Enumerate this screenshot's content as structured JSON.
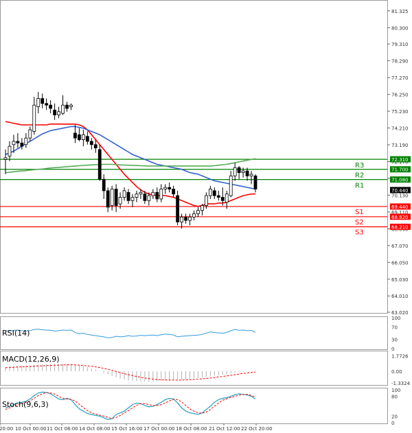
{
  "chart_data": {
    "type": "candlestick",
    "title": "",
    "main_panel": {
      "price_axis": {
        "ticks": [
          "81.325",
          "80.300",
          "79.310",
          "78.290",
          "77.270",
          "76.250",
          "75.230",
          "74.210",
          "73.190",
          "72.170",
          "71.150",
          "70.130",
          "69.110",
          "68.090",
          "67.070",
          "66.050",
          "65.030",
          "64.010",
          "63.020"
        ],
        "ylim": [
          63.02,
          81.9
        ]
      },
      "x_ticks": [
        "9 Oct 20:00",
        "10 Oct 00:00",
        "11 Oct 08:00",
        "14 Oct 08:00",
        "15 Oct 16:00",
        "17 Oct 00:00",
        "18 Oct 08:00",
        "21 Oct 12:00",
        "22 Oct 20:00"
      ],
      "candles": [
        {
          "o": 72.3,
          "h": 72.9,
          "l": 71.4,
          "c": 72.4
        },
        {
          "o": 72.5,
          "h": 73.4,
          "l": 72.2,
          "c": 73.1
        },
        {
          "o": 73.2,
          "h": 73.8,
          "l": 72.7,
          "c": 73.4
        },
        {
          "o": 73.4,
          "h": 73.9,
          "l": 73.0,
          "c": 73.3
        },
        {
          "o": 73.3,
          "h": 73.6,
          "l": 72.9,
          "c": 73.1
        },
        {
          "o": 73.2,
          "h": 73.9,
          "l": 73.0,
          "c": 73.6
        },
        {
          "o": 73.6,
          "h": 74.3,
          "l": 73.4,
          "c": 74.1
        },
        {
          "o": 74.0,
          "h": 76.1,
          "l": 73.8,
          "c": 75.6
        },
        {
          "o": 75.5,
          "h": 76.4,
          "l": 75.1,
          "c": 76.0
        },
        {
          "o": 76.0,
          "h": 76.3,
          "l": 75.4,
          "c": 75.7
        },
        {
          "o": 75.7,
          "h": 76.0,
          "l": 75.3,
          "c": 75.6
        },
        {
          "o": 75.6,
          "h": 75.9,
          "l": 75.1,
          "c": 75.4
        },
        {
          "o": 75.3,
          "h": 75.7,
          "l": 74.7,
          "c": 75.0
        },
        {
          "o": 75.0,
          "h": 75.5,
          "l": 74.8,
          "c": 75.2
        },
        {
          "o": 75.1,
          "h": 76.2,
          "l": 75.0,
          "c": 75.6
        },
        {
          "o": 75.6,
          "h": 75.8,
          "l": 75.2,
          "c": 75.4
        },
        {
          "o": 75.5,
          "h": 75.7,
          "l": 75.3,
          "c": 75.6
        },
        {
          "o": 73.9,
          "h": 74.4,
          "l": 73.3,
          "c": 73.6
        },
        {
          "o": 73.8,
          "h": 74.2,
          "l": 73.4,
          "c": 73.5
        },
        {
          "o": 73.5,
          "h": 74.1,
          "l": 73.1,
          "c": 73.8
        },
        {
          "o": 73.7,
          "h": 74.0,
          "l": 73.2,
          "c": 73.4
        },
        {
          "o": 73.4,
          "h": 73.6,
          "l": 72.9,
          "c": 73.2
        },
        {
          "o": 73.2,
          "h": 73.5,
          "l": 72.7,
          "c": 73.0
        },
        {
          "o": 72.9,
          "h": 73.2,
          "l": 71.0,
          "c": 71.1
        },
        {
          "o": 71.1,
          "h": 71.4,
          "l": 69.9,
          "c": 70.4
        },
        {
          "o": 70.4,
          "h": 70.6,
          "l": 69.1,
          "c": 69.4
        },
        {
          "o": 69.5,
          "h": 70.7,
          "l": 69.2,
          "c": 70.5
        },
        {
          "o": 70.5,
          "h": 70.8,
          "l": 69.1,
          "c": 69.5
        },
        {
          "o": 69.6,
          "h": 70.3,
          "l": 69.3,
          "c": 70.0
        },
        {
          "o": 70.0,
          "h": 70.6,
          "l": 69.8,
          "c": 70.4
        },
        {
          "o": 70.3,
          "h": 70.5,
          "l": 69.6,
          "c": 69.8
        },
        {
          "o": 69.8,
          "h": 70.2,
          "l": 69.4,
          "c": 70.0
        },
        {
          "o": 70.0,
          "h": 70.4,
          "l": 69.7,
          "c": 70.2
        },
        {
          "o": 70.2,
          "h": 70.5,
          "l": 69.9,
          "c": 70.3
        },
        {
          "o": 70.2,
          "h": 70.4,
          "l": 69.6,
          "c": 69.8
        },
        {
          "o": 69.8,
          "h": 70.3,
          "l": 69.5,
          "c": 70.1
        },
        {
          "o": 70.1,
          "h": 70.5,
          "l": 69.9,
          "c": 70.3
        },
        {
          "o": 70.3,
          "h": 70.6,
          "l": 69.7,
          "c": 69.9
        },
        {
          "o": 69.9,
          "h": 70.8,
          "l": 69.7,
          "c": 70.5
        },
        {
          "o": 70.5,
          "h": 70.8,
          "l": 70.2,
          "c": 70.6
        },
        {
          "o": 70.6,
          "h": 70.9,
          "l": 70.3,
          "c": 70.5
        },
        {
          "o": 70.5,
          "h": 70.7,
          "l": 70.0,
          "c": 70.2
        },
        {
          "o": 70.1,
          "h": 70.4,
          "l": 68.3,
          "c": 68.5
        },
        {
          "o": 68.5,
          "h": 69.0,
          "l": 68.1,
          "c": 68.8
        },
        {
          "o": 68.8,
          "h": 69.0,
          "l": 68.4,
          "c": 68.6
        },
        {
          "o": 68.6,
          "h": 69.0,
          "l": 68.3,
          "c": 68.8
        },
        {
          "o": 68.8,
          "h": 69.2,
          "l": 68.6,
          "c": 69.0
        },
        {
          "o": 69.0,
          "h": 69.4,
          "l": 68.8,
          "c": 69.2
        },
        {
          "o": 69.2,
          "h": 69.6,
          "l": 68.9,
          "c": 69.5
        },
        {
          "o": 69.5,
          "h": 70.3,
          "l": 69.3,
          "c": 70.1
        },
        {
          "o": 70.1,
          "h": 70.7,
          "l": 69.9,
          "c": 70.5
        },
        {
          "o": 70.4,
          "h": 70.6,
          "l": 69.9,
          "c": 70.1
        },
        {
          "o": 70.1,
          "h": 70.4,
          "l": 69.8,
          "c": 70.0
        },
        {
          "o": 70.0,
          "h": 70.6,
          "l": 69.5,
          "c": 69.8
        },
        {
          "o": 69.7,
          "h": 70.4,
          "l": 69.3,
          "c": 70.2
        },
        {
          "o": 70.1,
          "h": 71.6,
          "l": 70.0,
          "c": 71.3
        },
        {
          "o": 71.3,
          "h": 72.1,
          "l": 71.0,
          "c": 71.8
        },
        {
          "o": 71.8,
          "h": 71.9,
          "l": 71.1,
          "c": 71.5
        },
        {
          "o": 71.5,
          "h": 71.8,
          "l": 71.2,
          "c": 71.6
        },
        {
          "o": 71.6,
          "h": 71.8,
          "l": 71.0,
          "c": 71.3
        },
        {
          "o": 71.3,
          "h": 71.6,
          "l": 70.8,
          "c": 71.4
        },
        {
          "o": 71.3,
          "h": 71.4,
          "l": 70.3,
          "c": 70.5
        }
      ],
      "levels": [
        {
          "name": "R3",
          "value": 72.31,
          "label": "72.310",
          "color": "#008000"
        },
        {
          "name": "R2",
          "value": 71.7,
          "label": "71.700",
          "color": "#008000"
        },
        {
          "name": "R1",
          "value": 71.08,
          "label": "71.080",
          "color": "#008000"
        },
        {
          "name": "",
          "value": 70.44,
          "label": "70.440",
          "color": "#000000"
        },
        {
          "name": "S1",
          "value": 69.44,
          "label": "69.440",
          "color": "#ff0000"
        },
        {
          "name": "S2",
          "value": 68.82,
          "label": "68.820",
          "color": "#ff0000"
        },
        {
          "name": "S3",
          "value": 68.21,
          "label": "68.210",
          "color": "#ff0000"
        }
      ],
      "moving_averages": [
        {
          "color": "#ff0000",
          "values": [
            74.6,
            74.55,
            74.5,
            74.45,
            74.4,
            74.4,
            74.4,
            74.4,
            74.4,
            74.4,
            74.4,
            74.45,
            74.45,
            74.45,
            74.45,
            74.45,
            74.45,
            74.45,
            74.4,
            74.3,
            74.1,
            73.8,
            73.5,
            73.2,
            72.9,
            72.6,
            72.3,
            72.0,
            71.7,
            71.4,
            71.15,
            70.9,
            70.65,
            70.45,
            70.3,
            70.2,
            70.15,
            70.1,
            70.1,
            70.1,
            70.05,
            70.0,
            69.9,
            69.8,
            69.7,
            69.6,
            69.5,
            69.45,
            69.5,
            69.6,
            69.6,
            69.6,
            69.65,
            69.65,
            69.7,
            69.8,
            69.9,
            70.0,
            70.1,
            70.15,
            70.2,
            70.2
          ]
        },
        {
          "color": "#3060d0",
          "values": [
            72.6,
            72.7,
            72.8,
            72.95,
            73.1,
            73.25,
            73.4,
            73.55,
            73.7,
            73.85,
            73.95,
            74.05,
            74.1,
            74.15,
            74.2,
            74.25,
            74.3,
            74.3,
            74.25,
            74.2,
            74.1,
            74.0,
            73.9,
            73.8,
            73.65,
            73.5,
            73.35,
            73.2,
            73.05,
            72.9,
            72.75,
            72.6,
            72.5,
            72.4,
            72.3,
            72.2,
            72.1,
            72.0,
            71.95,
            71.9,
            71.85,
            71.8,
            71.75,
            71.7,
            71.6,
            71.5,
            71.45,
            71.4,
            71.3,
            71.2,
            71.1,
            71.0,
            70.95,
            70.9,
            70.85,
            70.8,
            70.75,
            70.7,
            70.65,
            70.6,
            70.55,
            70.5
          ]
        },
        {
          "color": "#55aa55",
          "values": [
            71.5,
            71.52,
            71.55,
            71.58,
            71.6,
            71.62,
            71.65,
            71.68,
            71.7,
            71.72,
            71.75,
            71.78,
            71.8,
            71.82,
            71.84,
            71.86,
            71.88,
            71.9,
            71.92,
            71.94,
            71.95,
            71.97,
            71.98,
            71.99,
            72.0,
            72.0,
            72.0,
            71.98,
            71.97,
            71.96,
            71.95,
            71.94,
            71.93,
            71.92,
            71.91,
            71.9,
            71.9,
            71.9,
            71.9,
            71.9,
            71.9,
            71.9,
            71.9,
            71.9,
            71.9,
            71.9,
            71.9,
            71.9,
            71.9,
            71.9,
            71.9,
            71.92,
            71.95,
            71.98,
            72.0,
            72.05,
            72.1,
            72.15,
            72.2,
            72.25,
            72.3,
            72.35
          ]
        }
      ]
    },
    "rsi": {
      "label": "RSI(14)",
      "ticks": [
        "100",
        "70",
        "30",
        "0"
      ],
      "ylim": [
        0,
        100
      ],
      "values": [
        58,
        57,
        59,
        60,
        58,
        57,
        58,
        62,
        63,
        61,
        60,
        59,
        57,
        58,
        60,
        59,
        60,
        52,
        48,
        50,
        46,
        44,
        42,
        40,
        38,
        35,
        36,
        40,
        38,
        39,
        42,
        40,
        41,
        43,
        42,
        43,
        44,
        42,
        45,
        47,
        46,
        44,
        38,
        40,
        41,
        42,
        43,
        44,
        46,
        50,
        54,
        52,
        51,
        50,
        52,
        58,
        62,
        59,
        60,
        58,
        59,
        52
      ]
    },
    "macd": {
      "label": "MACD(12,26,9)",
      "ticks": [
        "1.7726",
        "0.00",
        "-1.3324"
      ],
      "ylim": [
        -1.5,
        2.2
      ],
      "histogram": [
        0.5,
        0.55,
        0.6,
        0.62,
        0.63,
        0.65,
        0.66,
        0.7,
        0.75,
        0.78,
        0.8,
        0.82,
        0.83,
        0.84,
        0.85,
        0.85,
        0.84,
        0.75,
        0.65,
        0.55,
        0.45,
        0.3,
        0.15,
        0.0,
        -0.2,
        -0.4,
        -0.55,
        -0.7,
        -0.85,
        -0.95,
        -1.05,
        -1.1,
        -1.15,
        -1.18,
        -1.2,
        -1.2,
        -1.18,
        -1.15,
        -1.1,
        -1.05,
        -1.0,
        -0.95,
        -0.95,
        -0.93,
        -0.9,
        -0.86,
        -0.82,
        -0.78,
        -0.72,
        -0.65,
        -0.58,
        -0.52,
        -0.46,
        -0.4,
        -0.34,
        -0.26,
        -0.18,
        -0.12,
        -0.06,
        -0.02,
        0.02,
        0.05
      ],
      "signal": [
        0.4,
        0.42,
        0.45,
        0.48,
        0.5,
        0.52,
        0.54,
        0.57,
        0.6,
        0.62,
        0.64,
        0.66,
        0.68,
        0.7,
        0.72,
        0.73,
        0.74,
        0.72,
        0.7,
        0.66,
        0.62,
        0.56,
        0.5,
        0.42,
        0.33,
        0.22,
        0.1,
        -0.02,
        -0.15,
        -0.28,
        -0.4,
        -0.5,
        -0.6,
        -0.7,
        -0.78,
        -0.85,
        -0.9,
        -0.95,
        -0.98,
        -1.0,
        -1.02,
        -1.02,
        -1.02,
        -1.01,
        -1.0,
        -0.98,
        -0.95,
        -0.92,
        -0.88,
        -0.83,
        -0.78,
        -0.72,
        -0.66,
        -0.6,
        -0.54,
        -0.47,
        -0.4,
        -0.33,
        -0.26,
        -0.2,
        -0.14,
        -0.1
      ]
    },
    "stoch": {
      "label": "Stoch(9,6,3)",
      "ticks": [
        "100",
        "80",
        "20",
        "0"
      ],
      "ylim": [
        0,
        100
      ],
      "k": [
        45,
        50,
        55,
        60,
        62,
        65,
        72,
        82,
        90,
        93,
        92,
        88,
        80,
        72,
        70,
        74,
        70,
        55,
        42,
        35,
        28,
        25,
        22,
        20,
        15,
        10,
        12,
        25,
        30,
        35,
        45,
        55,
        60,
        58,
        52,
        48,
        50,
        55,
        62,
        70,
        74,
        72,
        60,
        45,
        35,
        30,
        28,
        25,
        30,
        40,
        50,
        62,
        70,
        74,
        76,
        80,
        85,
        88,
        86,
        84,
        80,
        72
      ],
      "d": [
        40,
        45,
        50,
        55,
        58,
        62,
        66,
        74,
        82,
        88,
        91,
        90,
        87,
        80,
        74,
        72,
        71,
        66,
        56,
        46,
        37,
        30,
        26,
        23,
        20,
        16,
        13,
        16,
        22,
        30,
        37,
        45,
        53,
        58,
        58,
        55,
        52,
        52,
        55,
        60,
        66,
        71,
        70,
        63,
        52,
        42,
        35,
        30,
        29,
        32,
        40,
        50,
        60,
        68,
        73,
        77,
        80,
        84,
        86,
        86,
        83,
        78
      ]
    }
  }
}
